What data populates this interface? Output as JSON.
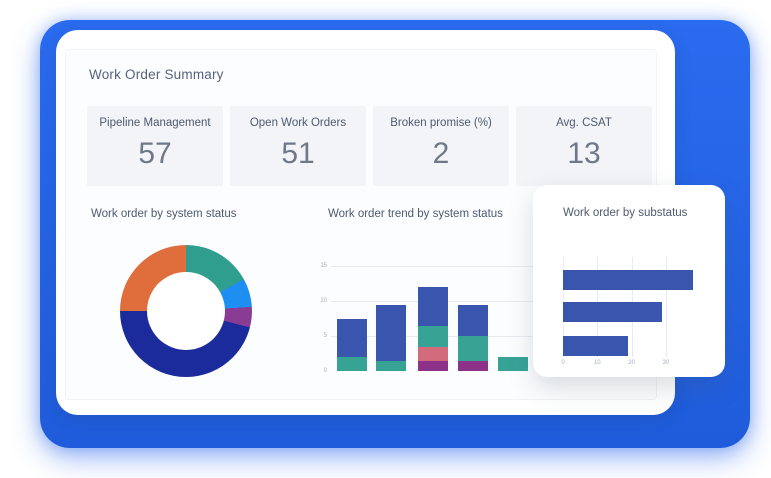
{
  "summary": {
    "title": "Work Order Summary"
  },
  "kpis": [
    {
      "label": "Pipeline Management",
      "value": "57"
    },
    {
      "label": "Open Work Orders",
      "value": "51"
    },
    {
      "label": "Broken promise (%)",
      "value": "2"
    },
    {
      "label": "Avg. CSAT",
      "value": "13"
    }
  ],
  "colors": {
    "backdrop_blue": "#2363E8",
    "card_white": "#ffffff",
    "kpi_tile_bg": "#f2f4f7",
    "label_text": "#4e5a70",
    "value_text": "#6e7888",
    "gridline": "#e7ebf1",
    "tick_text": "#a3acbc"
  },
  "chart_data": [
    {
      "type": "pie",
      "variant": "donut",
      "title": "Work order by system status",
      "legend": "none",
      "segments": [
        {
          "name": "teal",
          "color": "#2F9E8F",
          "share_pct": 17
        },
        {
          "name": "dodger-blue",
          "color": "#1E8FF2",
          "share_pct": 7
        },
        {
          "name": "purple",
          "color": "#8A3C95",
          "share_pct": 5
        },
        {
          "name": "navy",
          "color": "#1C2B9C",
          "share_pct": 46
        },
        {
          "name": "orange",
          "color": "#E06E3C",
          "share_pct": 25
        }
      ]
    },
    {
      "type": "bar",
      "variant": "stacked-vertical",
      "title": "Work order trend by system status",
      "ylim": [
        0,
        15
      ],
      "y_ticks": [
        0,
        5,
        10,
        15
      ],
      "grid": "horizontal",
      "categories": [
        "",
        "",
        "",
        "",
        ""
      ],
      "series": [
        {
          "name": "purple",
          "color": "#8C3389",
          "values": [
            0,
            0,
            1.5,
            1.5,
            0
          ]
        },
        {
          "name": "rose",
          "color": "#D26B7B",
          "values": [
            0,
            0,
            2,
            0,
            0
          ]
        },
        {
          "name": "teal",
          "color": "#36A395",
          "values": [
            2,
            1.5,
            3,
            3.5,
            2
          ]
        },
        {
          "name": "blue",
          "color": "#3955AD",
          "values": [
            5.5,
            8,
            5.5,
            4.5,
            0
          ]
        }
      ]
    },
    {
      "type": "bar",
      "variant": "horizontal",
      "title": "Work order by substatus",
      "xlim": [
        0,
        42
      ],
      "x_ticks": [
        0,
        10,
        20,
        30
      ],
      "grid": "vertical",
      "bar_color": "#3955AD",
      "categories": [
        "",
        "",
        ""
      ],
      "values": [
        38,
        29,
        19
      ]
    }
  ]
}
